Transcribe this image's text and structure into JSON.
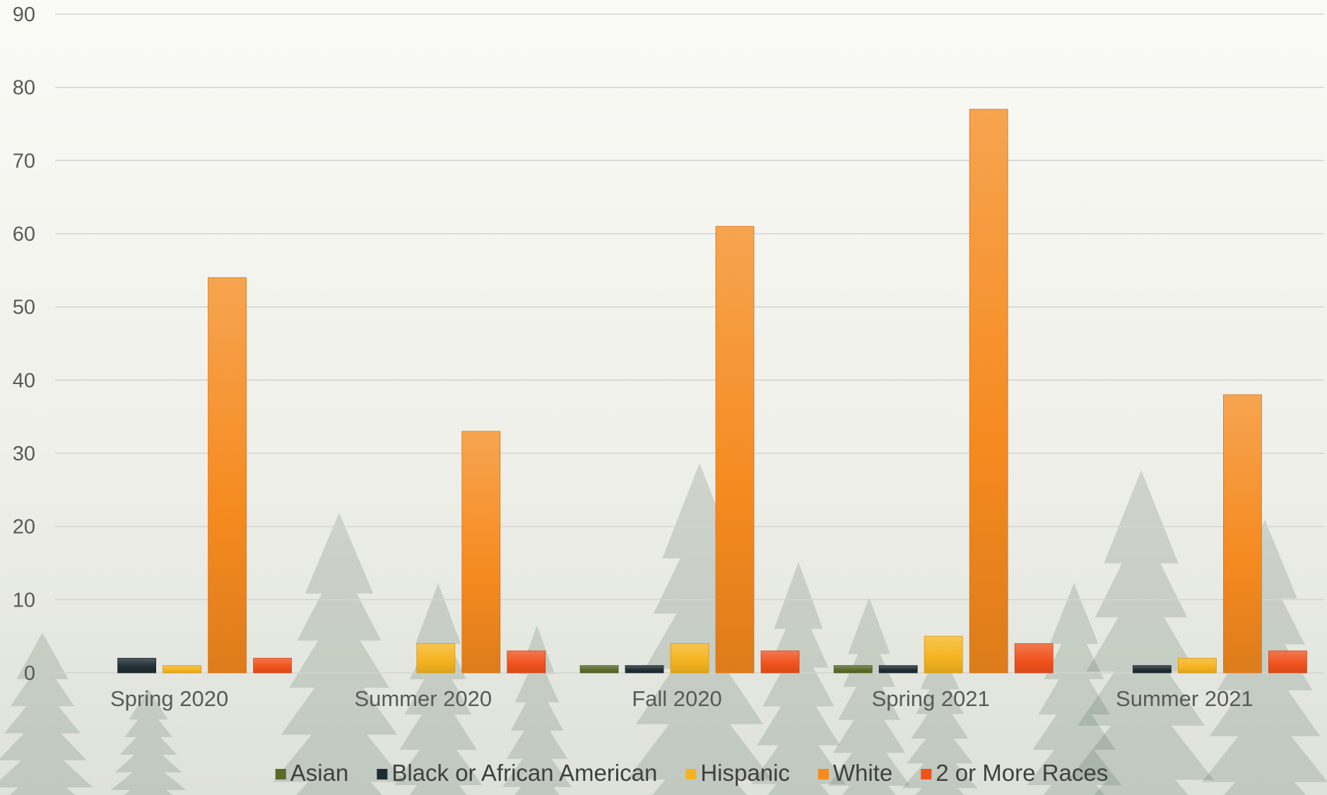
{
  "chart_data": {
    "type": "bar",
    "title": "",
    "xlabel": "",
    "ylabel": "",
    "ylim": [
      0,
      90
    ],
    "yticks": [
      0,
      10,
      20,
      30,
      40,
      50,
      60,
      70,
      80,
      90
    ],
    "grid": true,
    "legend_position": "bottom",
    "categories": [
      "Spring 2020",
      "Summer 2020",
      "Fall 2020",
      "Spring 2021",
      "Summer 2021"
    ],
    "series": [
      {
        "name": "Asian",
        "color": "#5a6b2a",
        "values": [
          0,
          0,
          1,
          1,
          0
        ]
      },
      {
        "name": "Black or African American",
        "color": "#1f2d33",
        "values": [
          2,
          0,
          1,
          1,
          1
        ]
      },
      {
        "name": "Hispanic",
        "color": "#f5b41f",
        "values": [
          1,
          4,
          4,
          5,
          2
        ]
      },
      {
        "name": "White",
        "color": "#f58a1f",
        "values": [
          54,
          33,
          61,
          77,
          38
        ]
      },
      {
        "name": "2 or More Races",
        "color": "#f0521c",
        "values": [
          2,
          3,
          3,
          4,
          3
        ]
      }
    ]
  }
}
